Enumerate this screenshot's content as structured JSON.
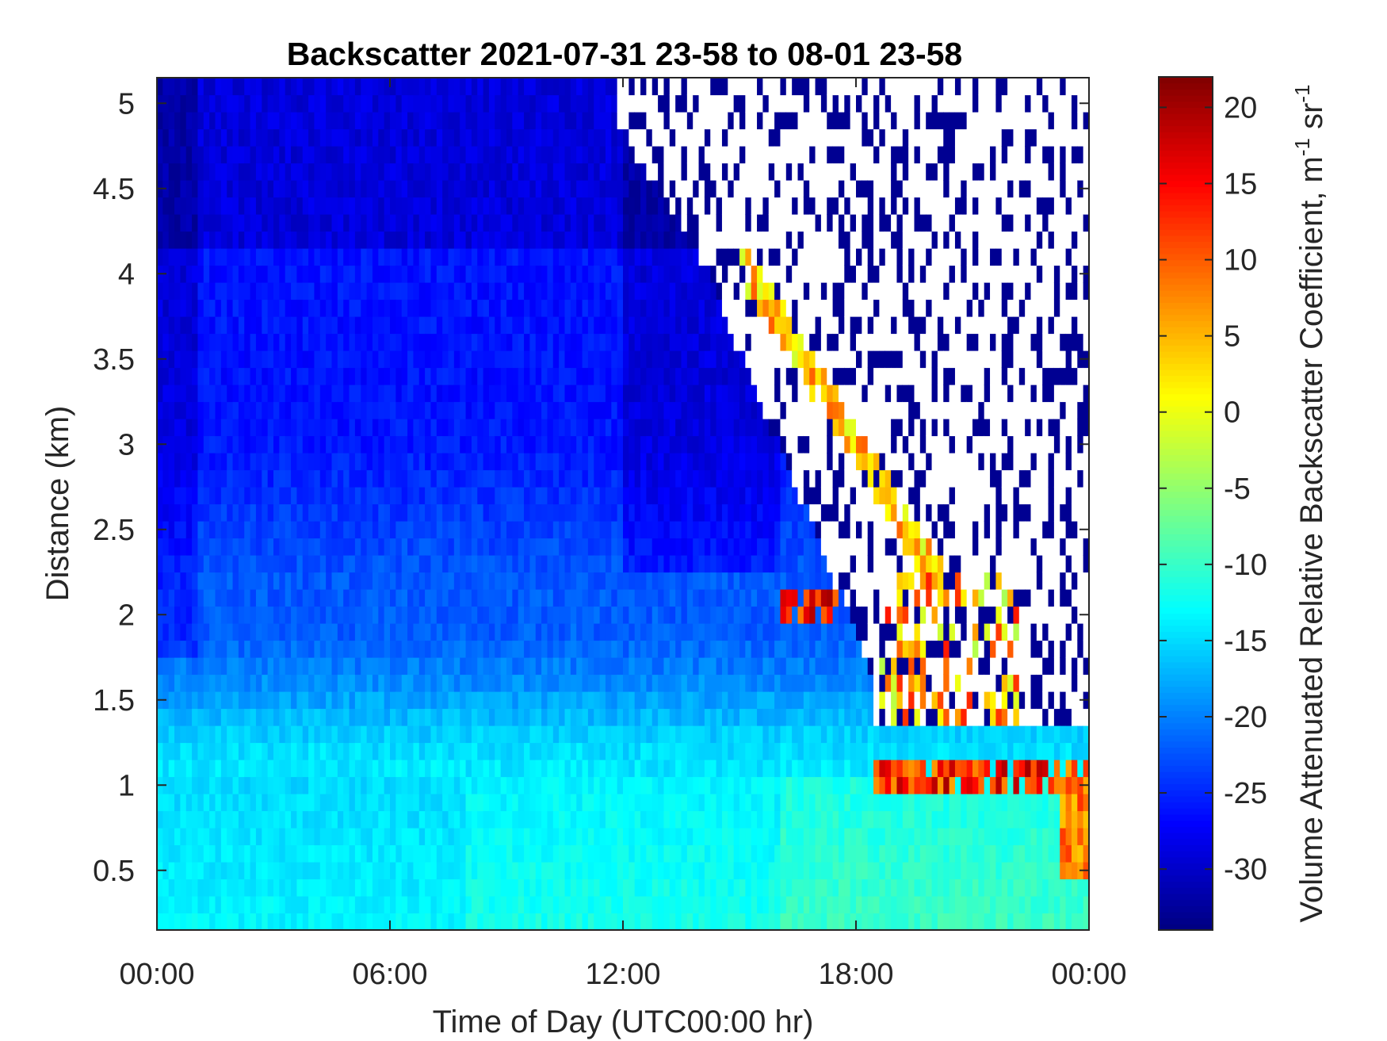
{
  "chart_data": {
    "type": "heatmap",
    "title": "Backscatter 2021-07-31 23-58 to 08-01 23-58",
    "xlabel": "Time of Day (UTC00:00 hr)",
    "ylabel": "Distance (km)",
    "colorbar_label": {
      "main": "Volume Attenuated Relative Backscatter Coefficient, m",
      "sup1": "-1",
      "mid": " sr",
      "sup2": "-1"
    },
    "x_ticks": [
      "00:00",
      "06:00",
      "12:00",
      "18:00",
      "00:00"
    ],
    "x_range_hours": [
      0,
      24
    ],
    "y_ticks": [
      "0.5",
      "1",
      "1.5",
      "2",
      "2.5",
      "3",
      "3.5",
      "4",
      "4.5",
      "5"
    ],
    "y_range_km": [
      0.15,
      5.15
    ],
    "colorbar_ticks": [
      "-30",
      "-25",
      "-20",
      "-15",
      "-10",
      "-5",
      "0",
      "5",
      "10",
      "15",
      "20"
    ],
    "color_range": [
      -34,
      22
    ],
    "colormap": "jet",
    "masked_color": "#ffffff",
    "features": [
      {
        "name": "near-surface layer",
        "height_km": [
          0.15,
          1.0
        ],
        "value_approx": -12
      },
      {
        "name": "cloud base layer",
        "time_hr": [
          18.5,
          24
        ],
        "height_km": [
          0.9,
          1.2
        ],
        "value_approx": 15
      },
      {
        "name": "descending cloud layer",
        "time_hr": [
          15,
          20
        ],
        "height_km": [
          4.0,
          2.2
        ],
        "value_approx": 5
      },
      {
        "name": "clouds near 2 km",
        "time_hr": [
          16,
          17.5
        ],
        "height_km": [
          2.0,
          2.2
        ],
        "value_approx": 12
      },
      {
        "name": "noise region (low signal)",
        "time_hr": [
          12,
          24
        ],
        "height_km": [
          1.3,
          5.15
        ]
      }
    ]
  }
}
